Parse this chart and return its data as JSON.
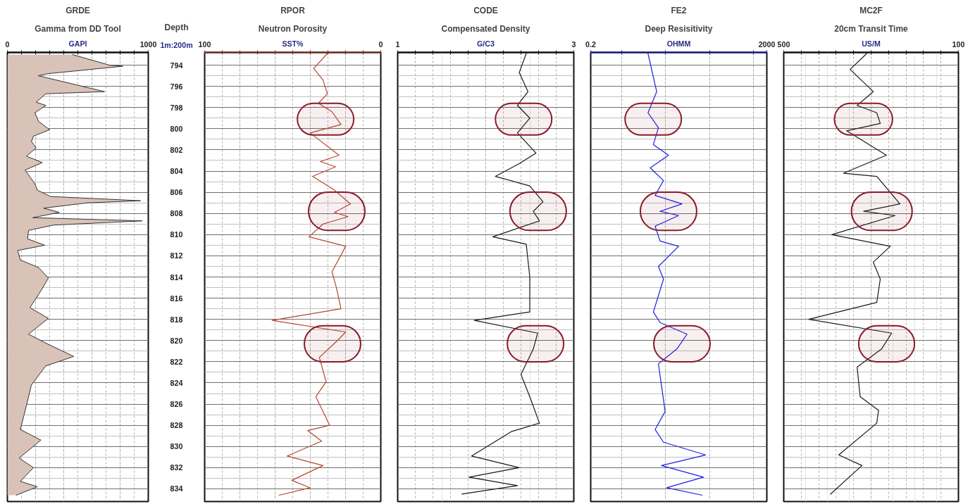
{
  "chart_data": [
    {
      "type": "area",
      "orientation": "horizontal",
      "title": "GRDE",
      "subtitle": "Gamma from DD Tool",
      "xlabel": "GAPI",
      "ylabel": "Depth",
      "annotations": [
        "1m:200m"
      ],
      "xlim": [
        0,
        1000
      ],
      "xticks": [
        0,
        {
          "value": 100,
          "label": null
        },
        {
          "value": 200,
          "label": null
        },
        {
          "value": 300,
          "label": null
        },
        {
          "value": 400,
          "label": null
        },
        {
          "value": 500,
          "label": null
        },
        {
          "value": 600,
          "label": null
        },
        {
          "value": 700,
          "label": null
        },
        {
          "value": 800,
          "label": null
        },
        {
          "value": 900,
          "label": null
        },
        1000
      ],
      "ylim": [
        835.2,
        792.8
      ],
      "yticks": [
        794,
        796,
        798,
        800,
        802,
        804,
        806,
        808,
        810,
        812,
        814,
        816,
        818,
        820,
        822,
        824,
        826,
        828,
        830,
        832,
        834
      ],
      "grid": true,
      "series": [
        {
          "color": "#d9c2b8",
          "values": [
            462,
            725,
            820,
            290,
            220,
            690,
            273,
            204,
            273,
            195,
            221,
            300,
            185,
            170,
            204,
            136,
            248,
            126,
            195,
            213,
            306,
            945,
            568,
            257,
            369,
            180,
            957,
            325,
            150,
            143,
            265,
            73,
            92,
            221,
            291,
            238,
            160,
            291,
            150,
            282,
            471,
            272,
            170,
            136,
            92,
            238,
            83,
            185,
            92,
            213,
            63
          ],
          "x": [
            793.0,
            794.0,
            794.1,
            794.8,
            795.0,
            796.5,
            796.7,
            797.5,
            797.8,
            798.5,
            799.3,
            800.1,
            800.7,
            801.2,
            801.8,
            802.6,
            803.2,
            803.9,
            805.2,
            805.8,
            806.4,
            806.8,
            807.0,
            807.5,
            807.9,
            808.4,
            808.7,
            809.1,
            809.6,
            810.4,
            811.0,
            811.5,
            812.4,
            813.1,
            814.1,
            815.3,
            816.9,
            817.9,
            819.4,
            820.3,
            821.5,
            822.4,
            824.2,
            826.1,
            828.4,
            829.4,
            831.1,
            832.0,
            833.3,
            833.8,
            834.6
          ]
        }
      ]
    },
    {
      "type": "line",
      "title": "RPOR",
      "subtitle": "Neutron Porosity",
      "xlabel": "SST%",
      "xlim": [
        100,
        0
      ],
      "xticks": [
        100,
        {
          "value": 90,
          "label": null
        },
        {
          "value": 80,
          "label": null
        },
        {
          "value": 70,
          "label": null
        },
        {
          "value": 60,
          "label": null
        },
        {
          "value": 50,
          "label": null
        },
        {
          "value": 40,
          "label": null
        },
        {
          "value": 30,
          "label": null
        },
        {
          "value": 20,
          "label": null
        },
        {
          "value": 10,
          "label": null
        },
        0
      ],
      "ylim": [
        835.2,
        792.8
      ],
      "yticks": [
        794,
        796,
        798,
        800,
        802,
        804,
        806,
        808,
        810,
        812,
        814,
        816,
        818,
        820,
        822,
        824,
        826,
        828,
        830,
        832,
        834
      ],
      "grid": true,
      "tick_labels": "x",
      "bands": [
        {
          "axis": "y",
          "from": 797.6,
          "to": 800.6,
          "color": "#8b1a2b"
        },
        {
          "axis": "y",
          "from": 806.0,
          "to": 809.6,
          "color": "#8b1a2b"
        },
        {
          "axis": "y",
          "from": 818.6,
          "to": 822.0,
          "color": "#8b1a2b"
        }
      ],
      "series": [
        {
          "color": "#b5472e",
          "x": [
            30.3,
            38.1,
            32.8,
            30.3,
            35.4,
            27.7,
            22.6,
            40.1,
            23.7,
            34.3,
            25.7,
            38.7,
            26.3,
            17.2,
            26.3,
            18.6,
            32.8,
            40.8,
            19.9,
            27.7,
            25.2,
            22.6,
            61.7,
            19.9,
            25.2,
            34.9,
            31.0,
            36.9,
            29.0,
            41.4,
            33.6,
            53.1,
            32.8,
            50.5,
            40.1,
            57.7
          ],
          "values": [
            792.9,
            794.3,
            795.4,
            796.7,
            797.6,
            798.4,
            799.6,
            800.4,
            802.5,
            803.1,
            803.6,
            804.5,
            805.8,
            807.1,
            807.9,
            808.3,
            809.0,
            810.2,
            811.1,
            813.5,
            815.0,
            817.0,
            818.1,
            819.2,
            820.1,
            821.6,
            823.9,
            825.3,
            828.0,
            828.5,
            829.5,
            830.9,
            831.8,
            833.2,
            833.9,
            834.6
          ]
        }
      ]
    },
    {
      "type": "line",
      "title": "CODE",
      "subtitle": "Compensated Density",
      "xlabel": "G/C3",
      "xlim": [
        1,
        3
      ],
      "xticks": [
        1,
        {
          "value": 1.2,
          "label": null
        },
        {
          "value": 1.4,
          "label": null
        },
        {
          "value": 1.6,
          "label": null
        },
        {
          "value": 1.8,
          "label": null
        },
        {
          "value": 2.0,
          "label": null
        },
        {
          "value": 2.2,
          "label": null
        },
        {
          "value": 2.4,
          "label": null
        },
        {
          "value": 2.6,
          "label": null
        },
        {
          "value": 2.8,
          "label": null
        },
        3
      ],
      "ylim": [
        835.2,
        792.8
      ],
      "yticks": [
        794,
        796,
        798,
        800,
        802,
        804,
        806,
        808,
        810,
        812,
        814,
        816,
        818,
        820,
        822,
        824,
        826,
        828,
        830,
        832,
        834
      ],
      "grid": true,
      "tick_labels": "x",
      "bands": [
        {
          "axis": "y",
          "from": 797.6,
          "to": 800.6,
          "color": "#8b1a2b"
        },
        {
          "axis": "y",
          "from": 806.0,
          "to": 809.6,
          "color": "#8b1a2b"
        },
        {
          "axis": "y",
          "from": 818.6,
          "to": 822.0,
          "color": "#8b1a2b"
        }
      ],
      "series": [
        {
          "color": "#1a1a1a",
          "x": [
            2.46,
            2.38,
            2.48,
            2.36,
            2.5,
            2.36,
            2.57,
            2.38,
            2.11,
            2.5,
            2.65,
            2.54,
            2.61,
            2.08,
            2.46,
            2.5,
            2.5,
            1.87,
            2.59,
            2.54,
            2.4,
            2.5,
            2.61,
            2.29,
            1.84,
            2.38,
            1.81,
            2.36,
            1.73
          ],
          "values": [
            792.9,
            794.7,
            796.5,
            797.8,
            799.0,
            800.4,
            802.3,
            803.3,
            804.5,
            805.4,
            806.9,
            807.8,
            808.7,
            810.2,
            810.9,
            814.0,
            817.3,
            818.1,
            819.3,
            820.8,
            823.2,
            825.3,
            827.8,
            828.6,
            830.9,
            832.0,
            832.9,
            833.7,
            834.5
          ]
        }
      ]
    },
    {
      "type": "line",
      "title": "FE2",
      "subtitle": "Deep Resisitivity",
      "xlabel": "OHMM",
      "log": "x",
      "xlim": [
        0.2,
        2000
      ],
      "xticks": [
        0.2,
        {
          "value": 1,
          "label": null
        },
        {
          "value": 10,
          "label": null
        },
        {
          "value": 100,
          "label": null
        },
        {
          "value": 1000,
          "label": null
        },
        2000
      ],
      "ylim": [
        835.2,
        792.8
      ],
      "yticks": [
        794,
        796,
        798,
        800,
        802,
        804,
        806,
        808,
        810,
        812,
        814,
        816,
        818,
        820,
        822,
        824,
        826,
        828,
        830,
        832,
        834
      ],
      "grid": true,
      "tick_labels": "x",
      "bands": [
        {
          "axis": "y",
          "from": 797.6,
          "to": 800.6,
          "color": "#8b1a2b"
        },
        {
          "axis": "y",
          "from": 806.0,
          "to": 809.6,
          "color": "#8b1a2b"
        },
        {
          "axis": "y",
          "from": 818.6,
          "to": 822.0,
          "color": "#8b1a2b"
        }
      ],
      "series": [
        {
          "color": "#1f1fe0",
          "x": [
            4.0,
            6.3,
            4.0,
            6.9,
            5.3,
            11.7,
            4.5,
            9.0,
            5.8,
            23.6,
            7.5,
            19.8,
            5.8,
            7.5,
            19.8,
            6.9,
            9.0,
            5.3,
            7.5,
            30.8,
            18.1,
            6.9,
            9.8,
            5.8,
            9.0,
            81,
            8.1,
            73,
            10.6,
            68
          ],
          "values": [
            792.9,
            796.5,
            798.5,
            799.9,
            801.5,
            802.5,
            803.7,
            804.9,
            806.3,
            807.1,
            807.8,
            808.2,
            809.2,
            810.6,
            811.1,
            813.0,
            814.2,
            817.3,
            818.3,
            819.4,
            820.8,
            822.2,
            826.7,
            828.4,
            829.6,
            830.8,
            831.8,
            832.9,
            833.9,
            834.6
          ]
        }
      ]
    },
    {
      "type": "line",
      "title": "MC2F",
      "subtitle": "20cm Transit Time",
      "xlabel": "US/M",
      "xlim": [
        500,
        100
      ],
      "xticks": [
        500,
        {
          "value": 460,
          "label": null
        },
        {
          "value": 420,
          "label": null
        },
        {
          "value": 380,
          "label": null
        },
        {
          "value": 340,
          "label": null
        },
        {
          "value": 300,
          "label": null
        },
        {
          "value": 260,
          "label": null
        },
        {
          "value": 220,
          "label": null
        },
        {
          "value": 180,
          "label": null
        },
        {
          "value": 140,
          "label": null
        },
        100
      ],
      "ylim": [
        835.2,
        792.8
      ],
      "yticks": [
        794,
        796,
        798,
        800,
        802,
        804,
        806,
        808,
        810,
        812,
        814,
        816,
        818,
        820,
        822,
        824,
        826,
        828,
        830,
        832,
        834
      ],
      "grid": true,
      "tick_labels": "x",
      "bands": [
        {
          "axis": "y",
          "from": 797.6,
          "to": 800.6,
          "color": "#8b1a2b"
        },
        {
          "axis": "y",
          "from": 806.0,
          "to": 809.6,
          "color": "#8b1a2b"
        },
        {
          "axis": "y",
          "from": 818.6,
          "to": 822.0,
          "color": "#8b1a2b"
        }
      ],
      "series": [
        {
          "color": "#1a1a1a",
          "x": [
            310,
            348,
            295,
            332,
            287,
            279,
            356,
            265,
            363,
            287,
            234,
            317,
            245,
            390,
            256,
            295,
            279,
            287,
            443,
            253,
            276,
            332,
            325,
            283,
            287,
            374,
            321,
            393
          ],
          "values": [
            792.9,
            794.4,
            796.5,
            797.8,
            798.5,
            799.5,
            800.2,
            802.5,
            804.2,
            804.5,
            807.1,
            807.8,
            808.2,
            810.0,
            811.1,
            812.6,
            814.2,
            816.4,
            818.0,
            819.3,
            820.8,
            822.5,
            825.3,
            826.6,
            827.8,
            830.8,
            831.8,
            834.5
          ]
        }
      ]
    }
  ]
}
